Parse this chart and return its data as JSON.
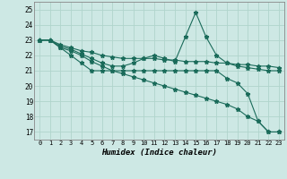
{
  "xlabel": "Humidex (Indice chaleur)",
  "xlim": [
    -0.5,
    23.5
  ],
  "ylim": [
    16.5,
    25.5
  ],
  "yticks": [
    17,
    18,
    19,
    20,
    21,
    22,
    23,
    24,
    25
  ],
  "xticks": [
    0,
    1,
    2,
    3,
    4,
    5,
    6,
    7,
    8,
    9,
    10,
    11,
    12,
    13,
    14,
    15,
    16,
    17,
    18,
    19,
    20,
    21,
    22,
    23
  ],
  "bg_color": "#cde8e4",
  "grid_color": "#b0d4cc",
  "line_color": "#1a6b5a",
  "lines": [
    {
      "x": [
        0,
        1,
        2,
        3,
        4,
        5,
        6,
        7,
        8,
        9,
        10,
        11,
        12,
        13,
        14,
        15,
        16,
        17,
        18,
        19,
        20,
        21,
        22,
        23
      ],
      "y": [
        23.0,
        23.0,
        22.7,
        22.5,
        22.3,
        22.2,
        22.0,
        21.9,
        21.8,
        21.8,
        21.8,
        21.8,
        21.7,
        21.7,
        21.6,
        21.6,
        21.6,
        21.5,
        21.5,
        21.4,
        21.4,
        21.3,
        21.3,
        21.2
      ]
    },
    {
      "x": [
        0,
        1,
        2,
        3,
        4,
        5,
        6,
        7,
        8,
        9,
        10,
        11,
        12,
        13,
        14,
        15,
        16,
        17,
        18,
        19,
        20,
        21,
        22,
        23
      ],
      "y": [
        23.0,
        23.0,
        22.6,
        22.4,
        22.1,
        21.8,
        21.5,
        21.3,
        21.3,
        21.5,
        21.8,
        22.0,
        21.8,
        21.6,
        23.2,
        24.8,
        23.2,
        22.0,
        21.5,
        21.3,
        21.2,
        21.1,
        21.0,
        21.0
      ]
    },
    {
      "x": [
        0,
        1,
        2,
        3,
        4,
        5,
        6,
        7,
        8,
        9,
        10,
        11,
        12,
        13,
        14,
        15,
        16,
        17,
        18,
        19,
        20,
        21,
        22,
        23
      ],
      "y": [
        23.0,
        23.0,
        22.5,
        22.3,
        22.0,
        21.6,
        21.3,
        21.0,
        20.8,
        20.6,
        20.4,
        20.2,
        20.0,
        19.8,
        19.6,
        19.4,
        19.2,
        19.0,
        18.8,
        18.5,
        18.0,
        17.7,
        17.0,
        17.0
      ]
    },
    {
      "x": [
        0,
        1,
        2,
        3,
        4,
        5,
        6,
        7,
        8,
        9,
        10,
        11,
        12,
        13,
        14,
        15,
        16,
        17,
        18,
        19,
        20,
        21,
        22,
        23
      ],
      "y": [
        23.0,
        23.0,
        22.5,
        22.0,
        21.5,
        21.0,
        21.0,
        21.0,
        21.0,
        21.0,
        21.0,
        21.0,
        21.0,
        21.0,
        21.0,
        21.0,
        21.0,
        21.0,
        20.5,
        20.2,
        19.5,
        17.7,
        17.0,
        17.0
      ]
    }
  ]
}
